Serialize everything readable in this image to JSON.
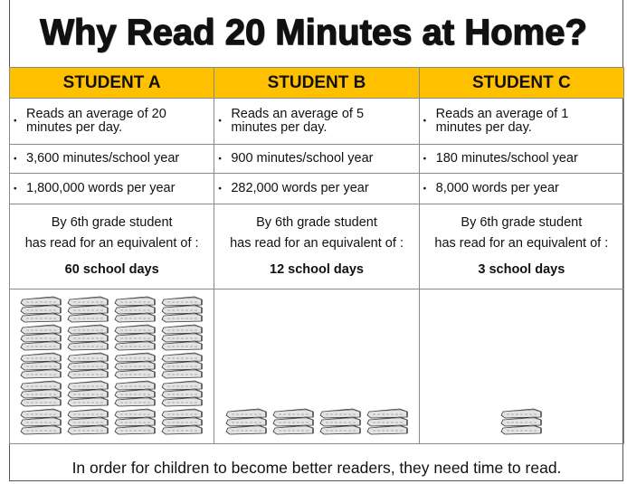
{
  "title": "Why Read 20 Minutes at Home?",
  "students": [
    {
      "name": "STUDENT A",
      "avg": "Reads an average of  20 minutes per day.",
      "minutes": "3,600 minutes/school year",
      "words": "1,800,000 words per year",
      "line1": "By 6th grade student",
      "line2": "has read for an equivalent of :",
      "days": "60 school days",
      "book_stacks": 20
    },
    {
      "name": "STUDENT B",
      "avg": "Reads an average of  5 minutes per day.",
      "minutes": "900 minutes/school year",
      "words": "282,000 words per year",
      "line1": "By 6th grade student",
      "line2": "has read for an equivalent of :",
      "days": "12 school days",
      "book_stacks": 4
    },
    {
      "name": "STUDENT C",
      "avg": "Reads an average of 1 minutes per day.",
      "minutes": "180 minutes/school year",
      "words": "8,000 words per year",
      "line1": "By 6th grade student",
      "line2": "has read for an equivalent of :",
      "days": "3 school days",
      "book_stacks": 1
    }
  ],
  "footer": "In order for children to become better readers, they need time to read.",
  "colors": {
    "header": "#FFC000"
  }
}
